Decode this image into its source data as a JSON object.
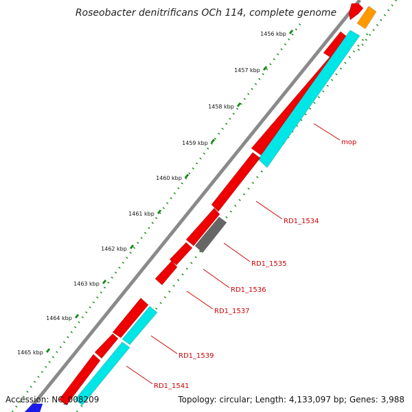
{
  "title": "Roseobacter denitrificans OCh 114, complete genome",
  "footer": {
    "accession": "Accession: NC_008209",
    "summary": "Topology: circular; Length: 4,133,097 bp; Genes: 3,988"
  },
  "ticks": [
    "1456 kbp",
    "1457 kbp",
    "1458 kbp",
    "1459 kbp",
    "1460 kbp",
    "1461 kbp",
    "1462 kbp",
    "1463 kbp",
    "1464 kbp",
    "1465 kbp"
  ],
  "gene_labels": [
    "mop",
    "RD1_1534",
    "RD1_1535",
    "RD1_1536",
    "RD1_1537",
    "RD1_1539",
    "RD1_1541"
  ],
  "colors": {
    "backbone": "#888888",
    "cds": "#ee0000",
    "gene": "#00e5e5",
    "other": "#666666",
    "orange": "#ff9900",
    "blue": "#1a1aee",
    "tick_dots": "#1a8a1a",
    "label": "#cc0000"
  }
}
